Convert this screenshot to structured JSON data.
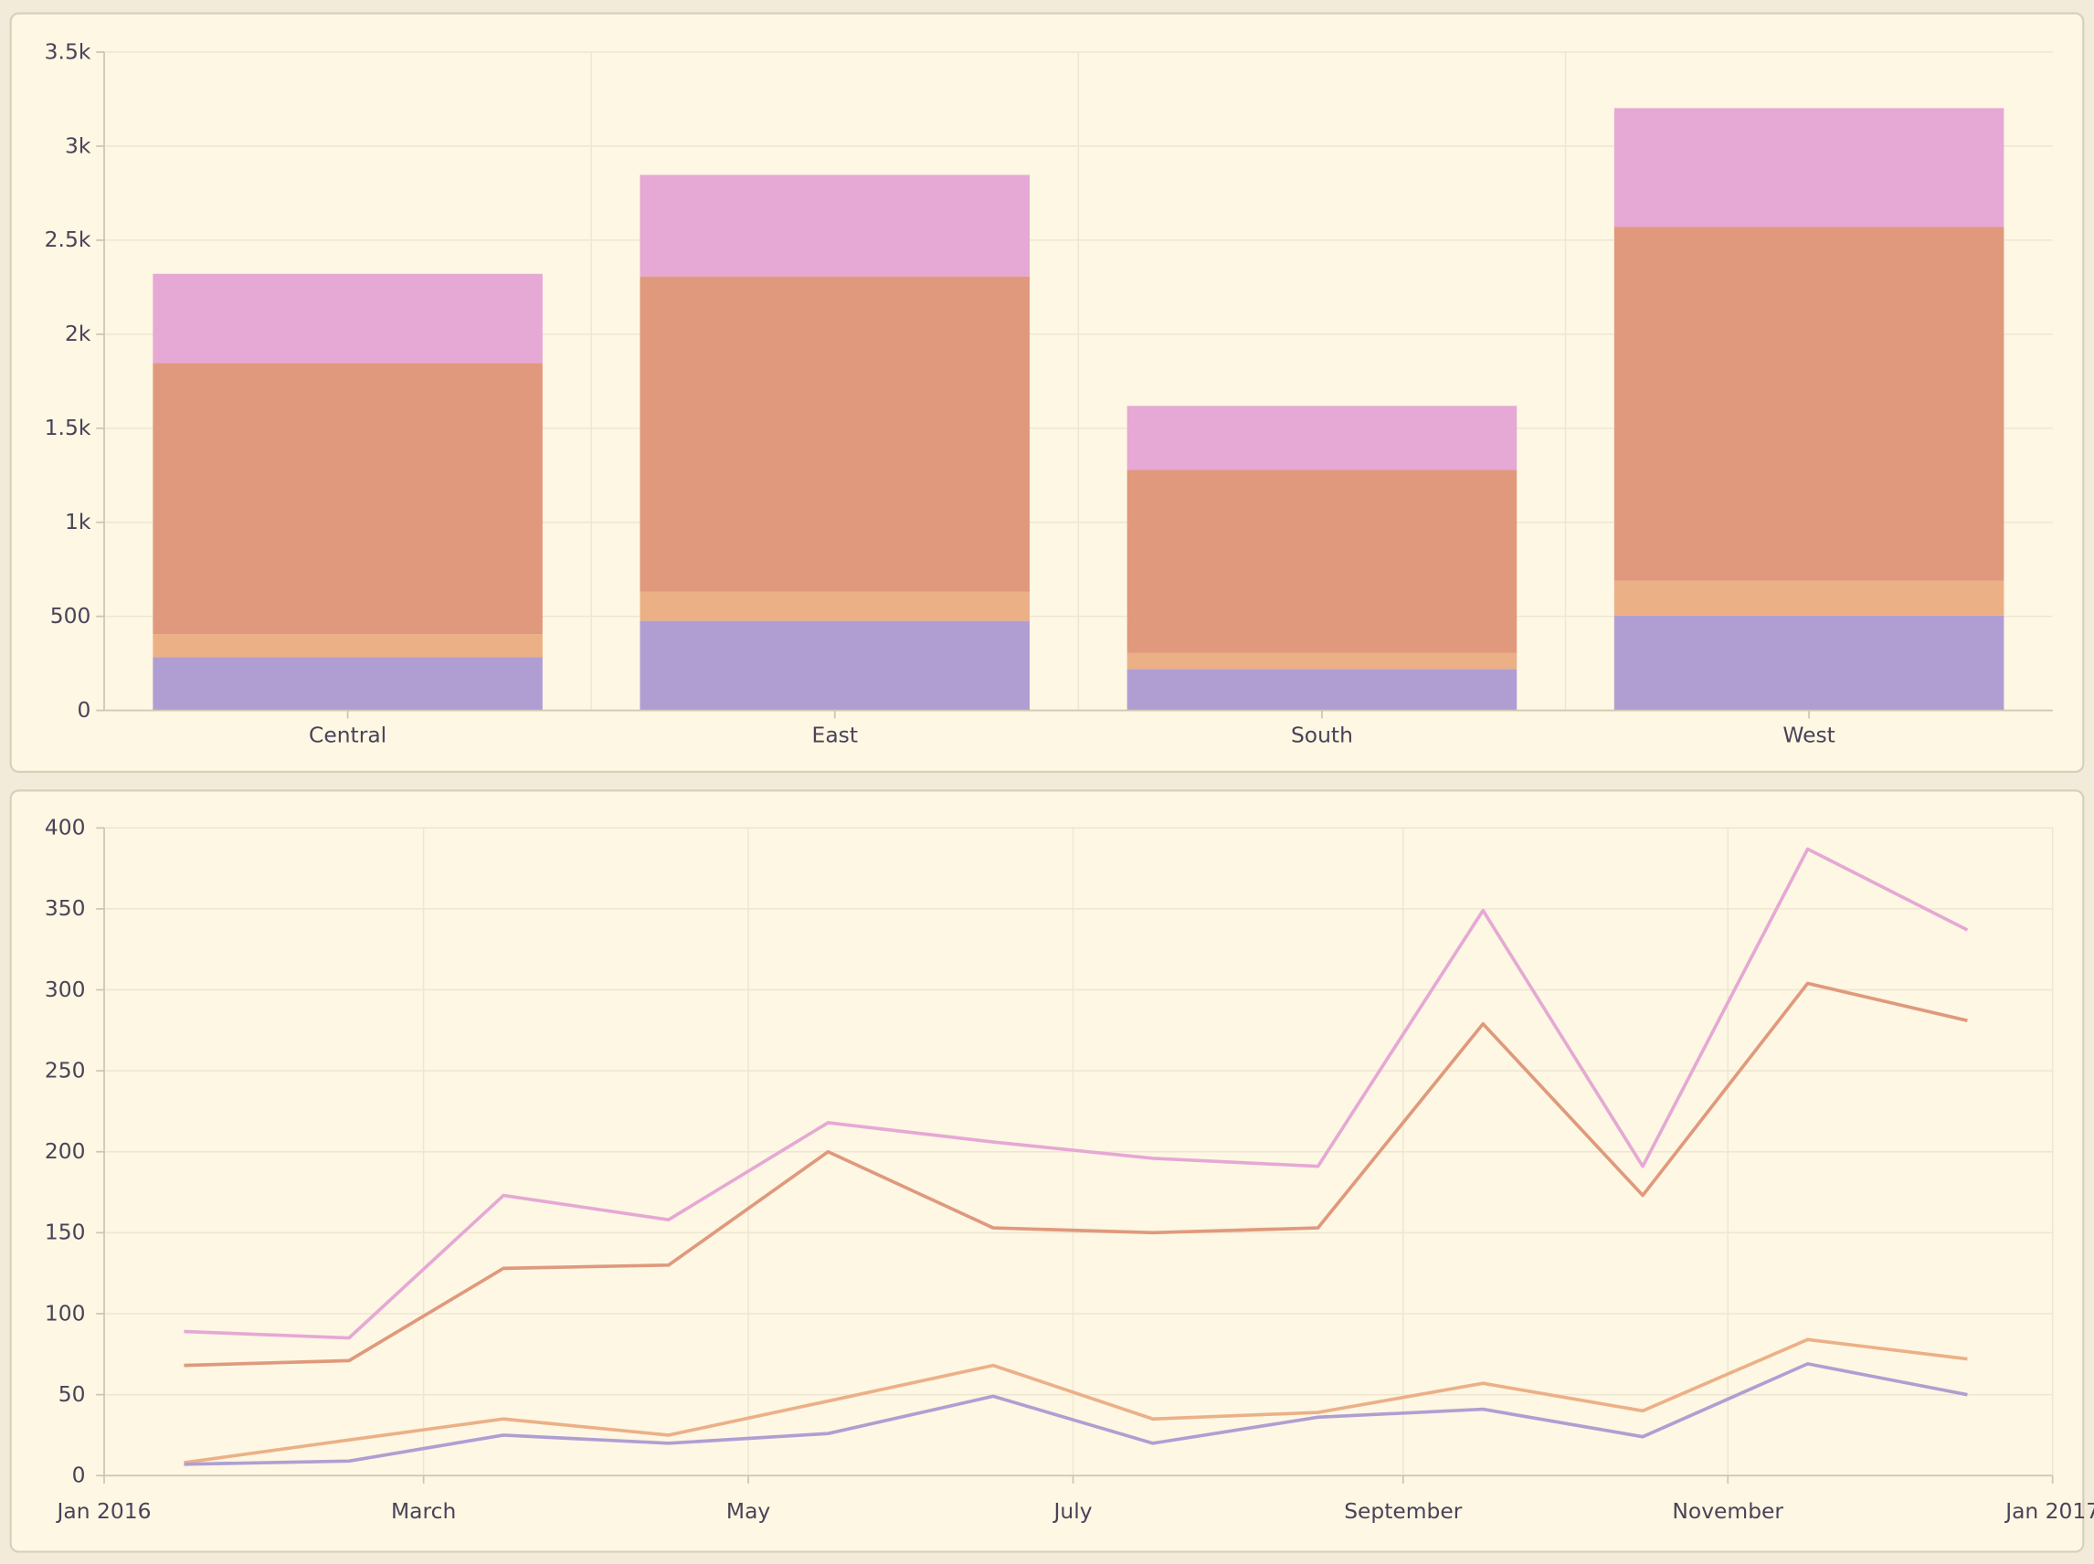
{
  "colors": {
    "background": "#f2ebd9",
    "panel": "#fdf7e4",
    "panel_border": "#d8d0bb",
    "text": "#4a4358",
    "series": [
      "#b09ed2",
      "#ecb087",
      "#e0997c",
      "#e6a8d4"
    ]
  },
  "chart_data": [
    {
      "type": "bar",
      "stacked": true,
      "categories": [
        "Central",
        "East",
        "South",
        "West"
      ],
      "series": [
        {
          "color": "#b09ed2",
          "values": [
            284,
            476,
            220,
            504
          ]
        },
        {
          "color": "#ecb087",
          "values": [
            121,
            156,
            85,
            185
          ]
        },
        {
          "color": "#e0997c",
          "values": [
            1441,
            1675,
            973,
            1881
          ]
        },
        {
          "color": "#e6a8d4",
          "values": [
            475,
            540,
            341,
            632
          ]
        }
      ],
      "ylim": [
        0,
        3500
      ],
      "yticks": [
        0,
        500,
        1000,
        1500,
        2000,
        2500,
        3000,
        3500
      ],
      "ytick_labels": [
        "0",
        "500",
        "1k",
        "1.5k",
        "2k",
        "2.5k",
        "3k",
        "3.5k"
      ],
      "grid": true,
      "legend": "none"
    },
    {
      "type": "line",
      "x": [
        "2016-01",
        "2016-02",
        "2016-03",
        "2016-04",
        "2016-05",
        "2016-06",
        "2016-07",
        "2016-08",
        "2016-09",
        "2016-10",
        "2016-11",
        "2016-12"
      ],
      "series": [
        {
          "color": "#e6a8d4",
          "values": [
            89,
            85,
            173,
            158,
            218,
            206,
            196,
            191,
            349,
            191,
            387,
            337
          ]
        },
        {
          "color": "#e0997c",
          "values": [
            68,
            71,
            128,
            130,
            200,
            153,
            150,
            153,
            279,
            173,
            304,
            281
          ]
        },
        {
          "color": "#ecb087",
          "values": [
            8,
            22,
            35,
            25,
            46,
            68,
            35,
            39,
            57,
            40,
            84,
            72
          ]
        },
        {
          "color": "#b09ed2",
          "values": [
            7,
            9,
            25,
            20,
            26,
            49,
            20,
            36,
            41,
            24,
            69,
            50
          ]
        }
      ],
      "xlim": [
        "2016-01-01",
        "2017-01-01"
      ],
      "xticks": [
        "2016-01-01",
        "2016-03-01",
        "2016-05-01",
        "2016-07-01",
        "2016-09-01",
        "2016-11-01",
        "2017-01-01"
      ],
      "xtick_labels": [
        "Jan 2016",
        "March",
        "May",
        "July",
        "September",
        "November",
        "Jan 2017"
      ],
      "ylim": [
        0,
        400
      ],
      "yticks": [
        0,
        50,
        100,
        150,
        200,
        250,
        300,
        350,
        400
      ],
      "ytick_labels": [
        "0",
        "50",
        "100",
        "150",
        "200",
        "250",
        "300",
        "350",
        "400"
      ],
      "grid": true,
      "legend": "none"
    }
  ]
}
